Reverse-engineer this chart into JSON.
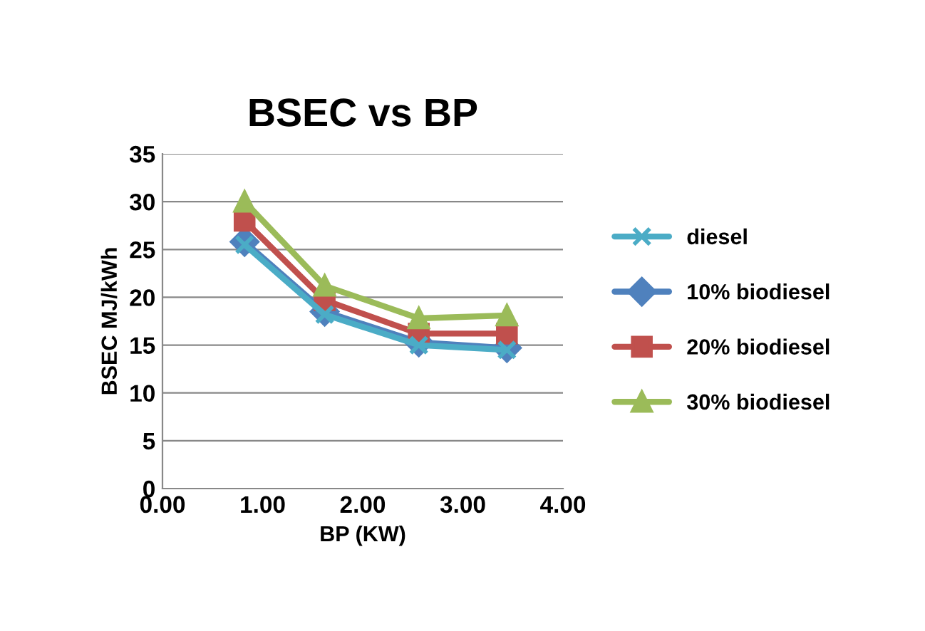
{
  "chart_data": {
    "type": "line",
    "title": "BSEC vs BP",
    "xlabel": "BP (KW)",
    "ylabel": "BSEC MJ/kWh",
    "x": [
      0.82,
      1.62,
      2.56,
      3.44
    ],
    "series": [
      {
        "name": "diesel",
        "color": "#4bacc6",
        "marker": "cross",
        "values": [
          25.5,
          18.2,
          15.0,
          14.5
        ]
      },
      {
        "name": "10% biodiesel",
        "color": "#4f81bd",
        "marker": "diamond",
        "values": [
          25.8,
          18.5,
          15.3,
          14.7
        ]
      },
      {
        "name": "20% biodiesel",
        "color": "#c0504d",
        "marker": "square",
        "values": [
          28.0,
          19.7,
          16.2,
          16.2
        ]
      },
      {
        "name": "30% biodiesel",
        "color": "#9bbb59",
        "marker": "triangle",
        "values": [
          30.0,
          21.2,
          17.8,
          18.1
        ]
      }
    ],
    "xlim": [
      0,
      4
    ],
    "xticks": [
      {
        "value": 0,
        "label": "0.00"
      },
      {
        "value": 1,
        "label": "1.00"
      },
      {
        "value": 2,
        "label": "2.00"
      },
      {
        "value": 3,
        "label": "3.00"
      },
      {
        "value": 4,
        "label": "4.00"
      }
    ],
    "ylim": [
      0,
      35
    ],
    "yticks": [
      0,
      5,
      10,
      15,
      20,
      25,
      30,
      35
    ],
    "grid": "y",
    "legend": "right"
  }
}
